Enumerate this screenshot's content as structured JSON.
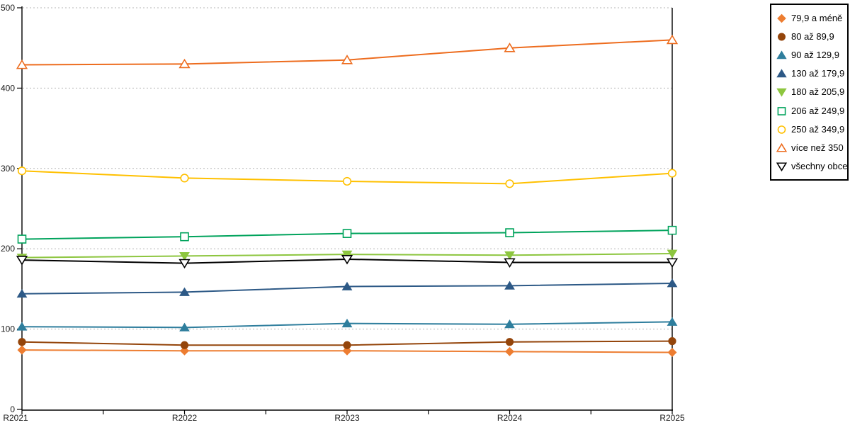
{
  "chart_data": {
    "type": "line",
    "title": "",
    "xlabel": "",
    "ylabel": "",
    "x_categories": [
      "R2021",
      "R2022",
      "R2023",
      "R2024",
      "R2025"
    ],
    "ylim": [
      0,
      500
    ],
    "yticks": [
      0,
      100,
      200,
      300,
      400,
      500
    ],
    "grid": "horizontal dashed gray at 100..500",
    "legend_position": "outside top-right, black-bordered box",
    "series": [
      {
        "name": "79,9 a méně",
        "color": "#ED7D31",
        "marker": "diamond",
        "fill": "solid",
        "values": [
          74,
          73,
          73,
          72,
          71
        ]
      },
      {
        "name": "80 až 89,9",
        "color": "#94450B",
        "marker": "circle",
        "fill": "solid",
        "values": [
          84,
          80,
          80,
          84,
          85
        ]
      },
      {
        "name": "90 až 129,9",
        "color": "#2F7E9D",
        "marker": "triangle-up",
        "fill": "solid",
        "values": [
          103,
          102,
          107,
          106,
          109
        ]
      },
      {
        "name": "130 až 179,9",
        "color": "#2D5986",
        "marker": "triangle-up",
        "fill": "solid",
        "values": [
          144,
          146,
          153,
          154,
          157
        ]
      },
      {
        "name": "180 až 205,9",
        "color": "#8DC63F",
        "marker": "triangle-down",
        "fill": "solid",
        "values": [
          189,
          191,
          193,
          192,
          194
        ]
      },
      {
        "name": "206 až 249,9",
        "color": "#00A35C",
        "marker": "square",
        "fill": "open",
        "values": [
          212,
          215,
          219,
          220,
          223
        ]
      },
      {
        "name": "250 až 349,9",
        "color": "#FFC000",
        "marker": "circle",
        "fill": "open",
        "values": [
          297,
          288,
          284,
          281,
          294
        ]
      },
      {
        "name": "více než 350",
        "color": "#ED6C1E",
        "marker": "triangle-up",
        "fill": "open",
        "values": [
          429,
          430,
          435,
          450,
          460
        ]
      },
      {
        "name": "všechny obce",
        "color": "#000000",
        "marker": "triangle-down",
        "fill": "open",
        "values": [
          186,
          182,
          187,
          183,
          183
        ]
      }
    ]
  }
}
